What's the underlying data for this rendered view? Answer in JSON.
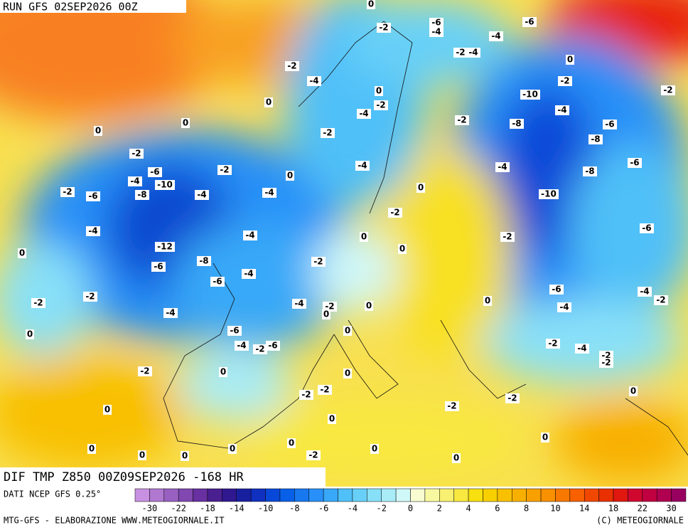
{
  "header": {
    "run": "RUN GFS 02SEP2026 00Z"
  },
  "map": {
    "title": "DIF TMP Z850 00Z09SEP2026 -168 HR",
    "contour_labels": [
      0,
      -2,
      -6,
      -4,
      -4,
      -6,
      -2,
      -4,
      -2,
      -4,
      0,
      -2,
      -2,
      0,
      0,
      -2,
      -4,
      -10,
      -4,
      -2,
      -8,
      -6,
      0,
      0,
      -2,
      -8,
      -2,
      -6,
      -4,
      -2,
      -4,
      0,
      -8,
      -6,
      -4,
      -10,
      -8,
      -2,
      -6,
      -4,
      -4,
      0,
      -10,
      -2,
      -4,
      0,
      -4,
      -2,
      -6,
      -12,
      0,
      0,
      -8,
      -6,
      -2,
      -4,
      -6,
      -6,
      -4,
      -2,
      -2,
      -2,
      0,
      -4,
      -2,
      0,
      0,
      -4,
      -4,
      0,
      -6,
      0,
      -4,
      -2,
      -6,
      -2,
      -4,
      -2,
      -2,
      -2,
      0,
      0,
      -2,
      -2,
      0,
      -2,
      0,
      -2,
      0,
      0,
      0,
      0,
      0,
      0,
      -2,
      0,
      0,
      0
    ]
  },
  "legend": {
    "source": "DATI NCEP GFS 0.25°",
    "colors": [
      "#c890e0",
      "#b078d0",
      "#9860c0",
      "#8048b0",
      "#6830a0",
      "#4a2090",
      "#301890",
      "#1820a0",
      "#1030c0",
      "#0848d8",
      "#0860e8",
      "#1878f0",
      "#2890f8",
      "#38a8f8",
      "#50c0f8",
      "#68d0f8",
      "#88e0f8",
      "#a8ecf8",
      "#d0f8f8",
      "#f8fcd0",
      "#f8f8a0",
      "#f8f070",
      "#f8e840",
      "#f8e010",
      "#f8d000",
      "#f8c000",
      "#f8b000",
      "#f8a000",
      "#f89000",
      "#f87800",
      "#f86000",
      "#f04800",
      "#e83000",
      "#e01810",
      "#d00830",
      "#c00040",
      "#b00050",
      "#980060"
    ],
    "ticks": [
      -30,
      -22,
      -18,
      -14,
      -10,
      -8,
      -6,
      -4,
      -2,
      0,
      2,
      4,
      6,
      8,
      10,
      14,
      18,
      22,
      30
    ]
  },
  "footer": {
    "left": "MTG-GFS - ELABORAZIONE WWW.METEOGIORNALE.IT",
    "right": "(C) METEOGIORNALE"
  }
}
